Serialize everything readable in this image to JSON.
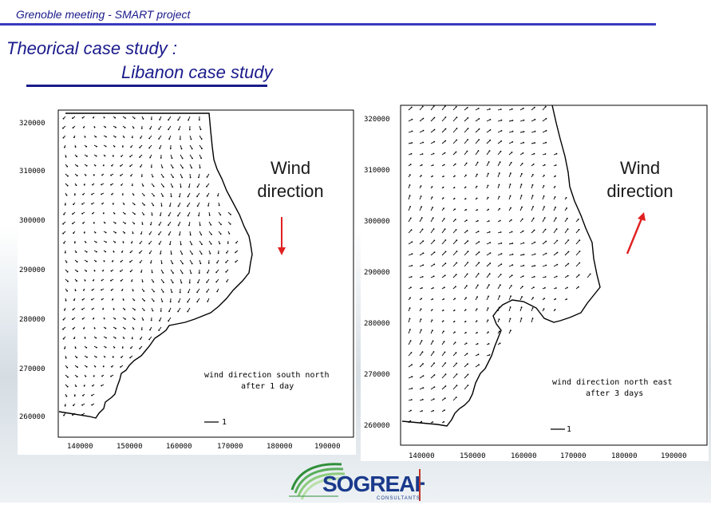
{
  "header": {
    "title": "Grenoble meeting  - SMART project"
  },
  "slide": {
    "title_line1": "Theorical case study :",
    "title_line2": "Libanon case study"
  },
  "left_plot": {
    "y_ticks": [
      "320000",
      "310000",
      "300000",
      "290000",
      "280000",
      "270000",
      "260000"
    ],
    "x_ticks": [
      "140000",
      "150000",
      "160000",
      "170000",
      "180000",
      "190000"
    ],
    "caption_line1": "wind direction south north",
    "caption_line2": "after 1 day",
    "scale_label": "1",
    "wind_label_line1": "Wind",
    "wind_label_line2": "direction",
    "wind_arrow": "down",
    "arrow_color": "#e02020"
  },
  "right_plot": {
    "y_ticks": [
      "320000",
      "310000",
      "300000",
      "290000",
      "280000",
      "270000",
      "260000"
    ],
    "x_ticks": [
      "140000",
      "150000",
      "160000",
      "170000",
      "180000",
      "190000"
    ],
    "caption_line1": "wind direction  north east",
    "caption_line2": "after 3 days",
    "scale_label": "1",
    "wind_label_line1": "Wind",
    "wind_label_line2": "direction",
    "wind_arrow": "up-right",
    "arrow_color": "#e02020"
  },
  "logo": {
    "name": "SOGREAH",
    "sub": "CONSULTANTS"
  },
  "colors": {
    "header_text": "#1a1a8c",
    "rule": "#3a3ac0",
    "logo_green": "#2f8f3a",
    "logo_blue": "#1a3a8c"
  }
}
